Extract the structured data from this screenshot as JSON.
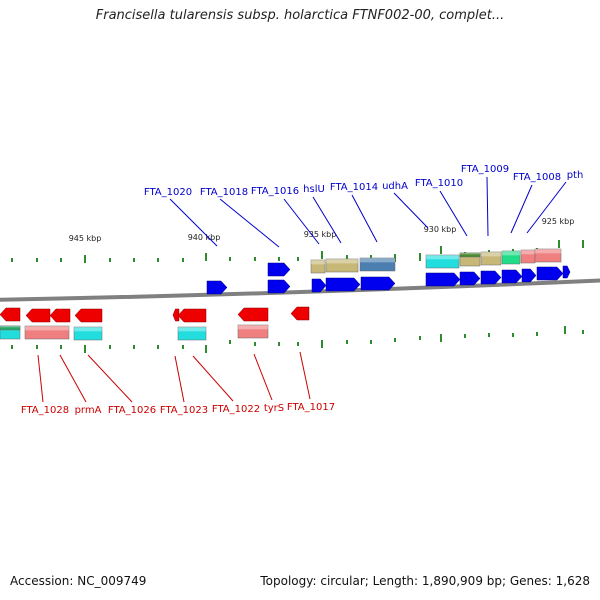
{
  "title": "Francisella tularensis subsp. holarctica FTNF002-00, complet...",
  "footer": {
    "accession": "Accession: NC_009749",
    "stats": "Topology: circular; Length: 1,890,909 bp; Genes: 1,628"
  },
  "colors": {
    "forward_gene": "#0000ee",
    "reverse_gene": "#ee0000",
    "forward_label": "#0000cc",
    "reverse_label": "#cc0000",
    "backbone": "#808080",
    "tick": "#2e8b2e",
    "feature_cyan": "#22dddd",
    "feature_salmon": "#f08080",
    "feature_khaki": "#c8b878",
    "feature_steel": "#4a7fb0",
    "feature_green": "#22dd88"
  },
  "scale_labels": [
    {
      "label": "945 kbp"
    },
    {
      "label": "940 kbp"
    },
    {
      "label": "935 kbp"
    },
    {
      "label": "930 kbp"
    },
    {
      "label": "925 kbp"
    }
  ],
  "forward_labels": [
    {
      "label": "FTA_1020"
    },
    {
      "label": "FTA_1018"
    },
    {
      "label": "FTA_1016"
    },
    {
      "label": "hslU"
    },
    {
      "label": "FTA_1014"
    },
    {
      "label": "udhA"
    },
    {
      "label": "FTA_1010"
    },
    {
      "label": "FTA_1009"
    },
    {
      "label": "FTA_1008"
    },
    {
      "label": "pth"
    }
  ],
  "reverse_labels": [
    {
      "label": "FTA_1028"
    },
    {
      "label": "prmA"
    },
    {
      "label": "FTA_1026"
    },
    {
      "label": "FTA_1023"
    },
    {
      "label": "FTA_1022"
    },
    {
      "label": "tyrS"
    },
    {
      "label": "FTA_1017"
    }
  ]
}
